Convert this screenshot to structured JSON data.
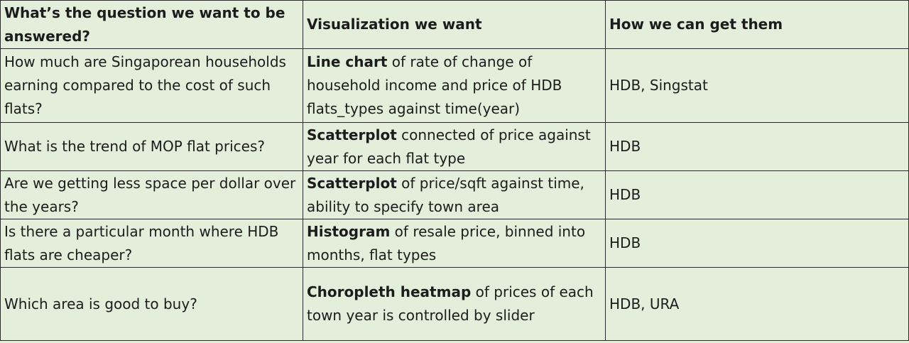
{
  "headers": {
    "question": "What’s the question we want to be answered?",
    "visualization": "Visualization we want",
    "source": "How we can get them"
  },
  "rows": [
    {
      "question": "How much are Singaporean households earning compared to the cost of such flats?",
      "viz_bold": "Line chart",
      "viz_rest": " of rate of change of household income and price of HDB flats_types against time(year)",
      "source": "HDB, Singstat"
    },
    {
      "question": "What is the trend of MOP flat prices?",
      "viz_bold": "Scatterplot",
      "viz_rest": " connected of price against year for each flat type",
      "source": "HDB"
    },
    {
      "question": "Are we getting less space per dollar over the years?",
      "viz_bold": "Scatterplot",
      "viz_rest": " of price/sqft against time, ability to specify town area",
      "source": "HDB"
    },
    {
      "question": "Is there a particular month where HDB flats  are cheaper?",
      "viz_bold": "Histogram",
      "viz_rest": " of resale price, binned into months, flat types",
      "source": "HDB"
    },
    {
      "question": "Which area is good to buy?",
      "viz_bold": "Choropleth heatmap",
      "viz_rest": " of prices of each town year is controlled by slider",
      "source": "HDB, URA"
    }
  ]
}
